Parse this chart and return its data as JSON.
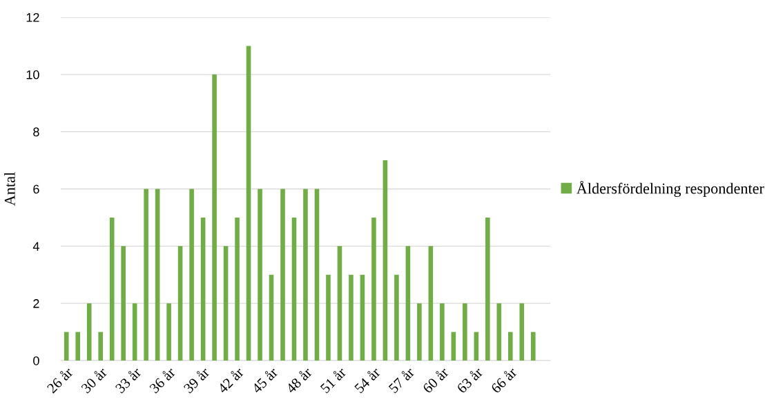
{
  "chart_data": {
    "type": "bar",
    "categories": [
      "26 år",
      null,
      null,
      "30 år",
      null,
      null,
      "33 år",
      null,
      null,
      "36 år",
      null,
      null,
      "39 år",
      null,
      null,
      "42 år",
      null,
      null,
      "45 år",
      null,
      null,
      "48 år",
      null,
      null,
      "51 år",
      null,
      null,
      "54 år",
      null,
      null,
      "57 år",
      null,
      null,
      "60 år",
      null,
      null,
      "63 år",
      null,
      null,
      "66 år",
      null,
      null,
      null
    ],
    "series": [
      {
        "name": "Åldersfördelning respondenter",
        "color": "#70ad47",
        "values": [
          1,
          1,
          2,
          1,
          5,
          4,
          2,
          6,
          6,
          2,
          4,
          6,
          5,
          10,
          4,
          5,
          11,
          6,
          3,
          6,
          5,
          6,
          6,
          3,
          4,
          3,
          3,
          5,
          7,
          3,
          4,
          2,
          4,
          2,
          1,
          2,
          1,
          5,
          2,
          1,
          2,
          1,
          null
        ]
      }
    ],
    "ylabel": "Antal",
    "ylim": [
      0,
      12
    ],
    "yticks": [
      0,
      2,
      4,
      6,
      8,
      10,
      12
    ],
    "grid": "y",
    "legend": "right"
  }
}
